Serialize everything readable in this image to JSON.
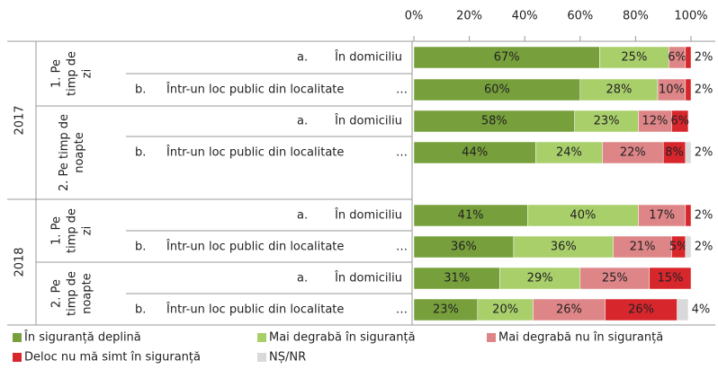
{
  "chart_data": {
    "type": "stacked_bar_horizontal",
    "xlim": [
      0,
      100
    ],
    "xticks": [
      {
        "value": 0,
        "label": "0%"
      },
      {
        "value": 20,
        "label": "20%"
      },
      {
        "value": 40,
        "label": "40%"
      },
      {
        "value": 60,
        "label": "60%"
      },
      {
        "value": 80,
        "label": "80%"
      },
      {
        "value": 100,
        "label": "100%"
      }
    ],
    "years": [
      "2017",
      "2018"
    ],
    "periods": [
      [
        "1. Pe",
        "timp de",
        "zi"
      ],
      [
        "2. Pe timp de",
        "noapte"
      ],
      [
        "1. Pe",
        "timp de",
        "zi"
      ],
      [
        "2. Pe",
        "timp de",
        "noapte"
      ]
    ],
    "letters": [
      "a.",
      "b.",
      "a.",
      "b.",
      "a.",
      "b.",
      "a.",
      "b."
    ],
    "categories": [
      "În domiciliu",
      "Într-un loc public din localitate",
      "În domiciliu",
      "Într-un loc public din localitate",
      "În domiciliu",
      "Într-un loc public din localitate",
      "În domiciliu",
      "Într-un loc public din localitate"
    ],
    "ellipsis": "…",
    "series": [
      {
        "name": "În siguranță deplină",
        "color": "#77a03c",
        "values": [
          67,
          60,
          58,
          44,
          41,
          36,
          31,
          23
        ],
        "value_labels": [
          "67%",
          "60%",
          "58%",
          "44%",
          "41%",
          "36%",
          "31%",
          "23%"
        ]
      },
      {
        "name": "Mai degrabă în siguranță",
        "color": "#a9cf6b",
        "values": [
          25,
          28,
          23,
          24,
          40,
          36,
          29,
          20
        ],
        "value_labels": [
          "25%",
          "28%",
          "23%",
          "24%",
          "40%",
          "36%",
          "29%",
          "20%"
        ]
      },
      {
        "name": "Mai degrabă nu în siguranță",
        "color": "#de8587",
        "values": [
          6,
          10,
          12,
          22,
          17,
          21,
          25,
          26
        ],
        "value_labels": [
          "6%",
          "10%",
          "12%",
          "22%",
          "17%",
          "21%",
          "25%",
          "26%"
        ]
      },
      {
        "name": "Deloc nu mă simt în siguranță",
        "color": "#d7262c",
        "values": [
          2,
          2,
          6,
          8,
          2,
          5,
          15,
          26
        ],
        "value_labels": [
          "2%",
          "2%",
          "6%",
          "8%",
          "2%",
          "5%",
          "15%",
          "26%"
        ]
      },
      {
        "name": "NȘ/NR",
        "color": "#d9d9d9",
        "values": [
          0,
          0,
          0,
          2,
          0,
          2,
          0,
          4
        ],
        "value_labels": [
          null,
          null,
          null,
          "2%",
          null,
          "2%",
          null,
          "4%"
        ]
      }
    ]
  }
}
